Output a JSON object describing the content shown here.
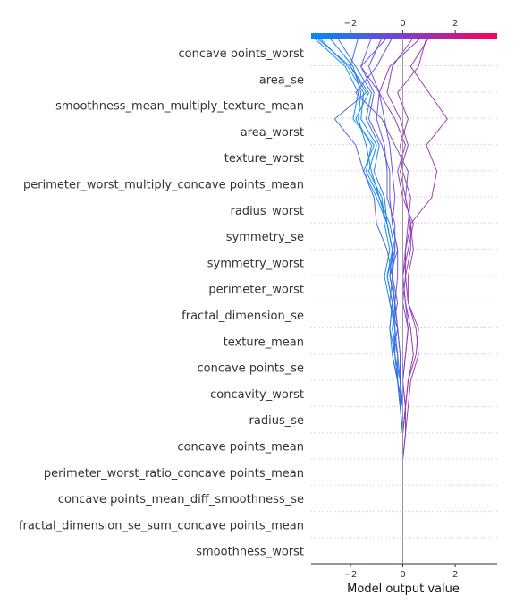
{
  "chart_data": {
    "type": "line",
    "subtype": "shap-decision-plot",
    "title": "",
    "xlabel": "Model output value",
    "ylabel": "",
    "xlim": [
      -3.5,
      3.6
    ],
    "xticks": [
      -2,
      0,
      2
    ],
    "tick_labels": [
      "−2",
      "0",
      "2"
    ],
    "base_value": 0,
    "color_scale": {
      "low": "#008bfb",
      "mid": "#7d3fcf",
      "high": "#ff0052"
    },
    "grid": "dotted horizontal",
    "features": [
      "concave points_worst",
      "area_se",
      "smoothness_mean_multiply_texture_mean",
      "area_worst",
      "texture_worst",
      "perimeter_worst_multiply_concave points_mean",
      "radius_worst",
      "symmetry_se",
      "symmetry_worst",
      "perimeter_worst",
      "fractal_dimension_se",
      "texture_mean",
      "concave points_se",
      "concavity_worst",
      "radius_se",
      "concave points_mean",
      "perimeter_worst_ratio_concave points_mean",
      "concave points_mean_diff_smoothness_se",
      "fractal_dimension_se_sum_concave points_mean",
      "smoothness_worst"
    ],
    "series": [
      {
        "values": [
          -3.4,
          -2.2,
          -1.7,
          -1.9,
          -1.1,
          -1.5,
          -1.0,
          -0.6,
          -0.4,
          -0.5,
          -0.3,
          -0.4,
          -0.3,
          -0.1,
          -0.1,
          0.0,
          0.0,
          0.0,
          0.0,
          0.0,
          0.0
        ]
      },
      {
        "values": [
          -3.3,
          -2.0,
          -1.3,
          -1.8,
          -1.2,
          -1.4,
          -0.9,
          -0.5,
          -0.3,
          -0.6,
          -0.4,
          -0.5,
          -0.4,
          -0.2,
          -0.1,
          0.0,
          0.0,
          0.0,
          0.0,
          0.0,
          0.0
        ]
      },
      {
        "values": [
          -3.2,
          -2.1,
          -1.5,
          -1.6,
          -1.0,
          -1.3,
          -0.8,
          -0.7,
          -0.5,
          -0.7,
          -0.5,
          -0.3,
          -0.2,
          -0.1,
          0.0,
          0.0,
          0.0,
          0.0,
          0.0,
          0.0,
          0.0
        ]
      },
      {
        "values": [
          -2.5,
          -1.8,
          -1.2,
          -1.4,
          -0.9,
          -1.1,
          -0.7,
          -0.6,
          -0.4,
          -0.4,
          -0.3,
          -0.3,
          -0.3,
          -0.2,
          -0.1,
          0.0,
          0.0,
          0.0,
          0.0,
          0.0,
          0.0
        ]
      },
      {
        "values": [
          -1.7,
          -2.0,
          -1.4,
          -2.6,
          -1.8,
          -1.5,
          -1.1,
          -1.0,
          -0.6,
          -0.4,
          -0.5,
          -0.2,
          -0.1,
          -0.1,
          0.0,
          0.0,
          0.0,
          0.0,
          0.0,
          0.0,
          0.0
        ]
      },
      {
        "values": [
          -1.2,
          -1.6,
          -1.1,
          -1.3,
          -0.8,
          -0.5,
          -0.5,
          -0.4,
          -0.2,
          -0.5,
          -0.3,
          -0.2,
          -0.4,
          -0.2,
          -0.1,
          0.0,
          0.0,
          0.0,
          0.0,
          0.0,
          0.0
        ]
      },
      {
        "values": [
          -0.8,
          -1.3,
          -0.9,
          -1.0,
          -0.7,
          -0.6,
          -0.6,
          -0.3,
          -0.3,
          -0.4,
          -0.2,
          -0.4,
          -0.2,
          -0.2,
          0.0,
          0.0,
          0.0,
          0.0,
          0.0,
          0.0,
          0.0
        ]
      },
      {
        "values": [
          -0.4,
          -1.0,
          -1.8,
          -0.8,
          -0.3,
          0.2,
          0.1,
          0.3,
          0.3,
          0.1,
          0.0,
          0.2,
          0.1,
          0.0,
          0.1,
          0.1,
          0.0,
          0.0,
          0.0,
          0.0,
          0.0
        ]
      },
      {
        "values": [
          0.7,
          -0.5,
          -0.9,
          -0.3,
          0.1,
          -0.2,
          0.0,
          0.4,
          0.2,
          0.0,
          0.1,
          0.3,
          0.4,
          0.2,
          0.1,
          0.0,
          0.0,
          0.0,
          0.0,
          0.0,
          0.0
        ]
      },
      {
        "values": [
          1.0,
          0.3,
          1.0,
          1.7,
          0.9,
          1.3,
          1.1,
          0.3,
          0.4,
          0.2,
          0.2,
          0.5,
          0.6,
          0.3,
          0.2,
          0.1,
          0.0,
          0.0,
          0.0,
          0.0,
          0.0
        ]
      },
      {
        "values": [
          0.9,
          0.6,
          -0.2,
          0.2,
          -0.1,
          0.0,
          0.3,
          0.2,
          0.1,
          0.1,
          0.2,
          0.6,
          0.5,
          0.2,
          0.1,
          0.0,
          0.0,
          0.0,
          0.0,
          0.0,
          0.0
        ]
      },
      {
        "values": [
          0.4,
          -0.4,
          -0.6,
          -0.1,
          0.2,
          -0.1,
          0.1,
          0.3,
          0.1,
          0.0,
          0.1,
          0.2,
          0.1,
          0.0,
          0.1,
          0.0,
          0.0,
          0.0,
          0.0,
          0.0,
          0.0
        ]
      },
      {
        "values": [
          -2.8,
          -1.9,
          -1.6,
          -1.7,
          -1.4,
          -1.2,
          -0.9,
          -0.6,
          -0.4,
          -0.6,
          -0.4,
          -0.5,
          -0.3,
          -0.2,
          -0.1,
          0.0,
          0.0,
          0.0,
          0.0,
          0.0,
          0.0
        ]
      },
      {
        "values": [
          -0.6,
          -1.6,
          -0.9,
          -0.7,
          -0.5,
          -0.4,
          -0.3,
          -0.4,
          -0.2,
          -0.2,
          -0.3,
          -0.2,
          -0.1,
          -0.1,
          0.0,
          0.0,
          0.0,
          0.0,
          0.0,
          0.0,
          0.0
        ]
      }
    ]
  }
}
